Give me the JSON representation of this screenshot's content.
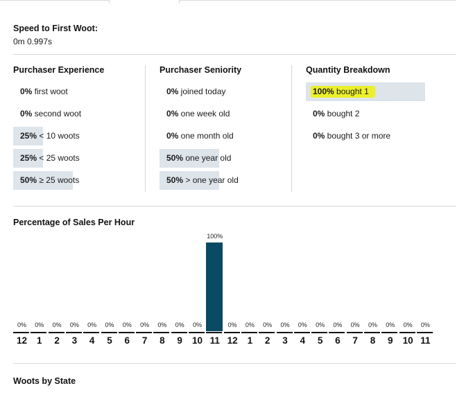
{
  "speed": {
    "title": "Speed to First Woot:",
    "value": "0m 0.997s"
  },
  "experience": {
    "title": "Purchaser Experience",
    "rows": [
      {
        "pct": "0%",
        "label": " first woot",
        "fraction": 0
      },
      {
        "pct": "0%",
        "label": " second woot",
        "fraction": 0
      },
      {
        "pct": "25%",
        "label": " < 10 woots",
        "fraction": 0.25
      },
      {
        "pct": "25%",
        "label": " < 25 woots",
        "fraction": 0.25
      },
      {
        "pct": "50%",
        "label": " ≥ 25 woots",
        "fraction": 0.5
      }
    ]
  },
  "seniority": {
    "title": "Purchaser Seniority",
    "rows": [
      {
        "pct": "0%",
        "label": " joined today",
        "fraction": 0
      },
      {
        "pct": "0%",
        "label": " one week old",
        "fraction": 0
      },
      {
        "pct": "0%",
        "label": " one month old",
        "fraction": 0
      },
      {
        "pct": "50%",
        "label": " one year old",
        "fraction": 0.5
      },
      {
        "pct": "50%",
        "label": " > one year old",
        "fraction": 0.5
      }
    ]
  },
  "quantity": {
    "title": "Quantity Breakdown",
    "rows": [
      {
        "pct": "100%",
        "label": " bought 1",
        "fraction": 1,
        "highlighted": true
      },
      {
        "pct": "0%",
        "label": " bought 2",
        "fraction": 0
      },
      {
        "pct": "0%",
        "label": " bought 3 or more",
        "fraction": 0
      }
    ]
  },
  "chart_data": {
    "type": "bar",
    "title": "Percentage of Sales Per Hour",
    "categories": [
      "12",
      "1",
      "2",
      "3",
      "4",
      "5",
      "6",
      "7",
      "8",
      "9",
      "10",
      "11",
      "12",
      "1",
      "2",
      "3",
      "4",
      "5",
      "6",
      "7",
      "8",
      "9",
      "10",
      "11"
    ],
    "values": [
      0,
      0,
      0,
      0,
      0,
      0,
      0,
      0,
      0,
      0,
      0,
      100,
      0,
      0,
      0,
      0,
      0,
      0,
      0,
      0,
      0,
      0,
      0,
      0
    ],
    "labels": [
      "0%",
      "0%",
      "0%",
      "0%",
      "0%",
      "0%",
      "0%",
      "0%",
      "0%",
      "0%",
      "0%",
      "100%",
      "0%",
      "0%",
      "0%",
      "0%",
      "0%",
      "0%",
      "0%",
      "0%",
      "0%",
      "0%",
      "0%",
      "0%"
    ],
    "ylim": [
      0,
      100
    ],
    "bar_color": "#0b4a63"
  },
  "state": {
    "title": "Woots by State"
  },
  "colors": {
    "bar_bg": "#dde4ea",
    "highlight": "#ecf02a",
    "accent": "#0b4a63"
  }
}
